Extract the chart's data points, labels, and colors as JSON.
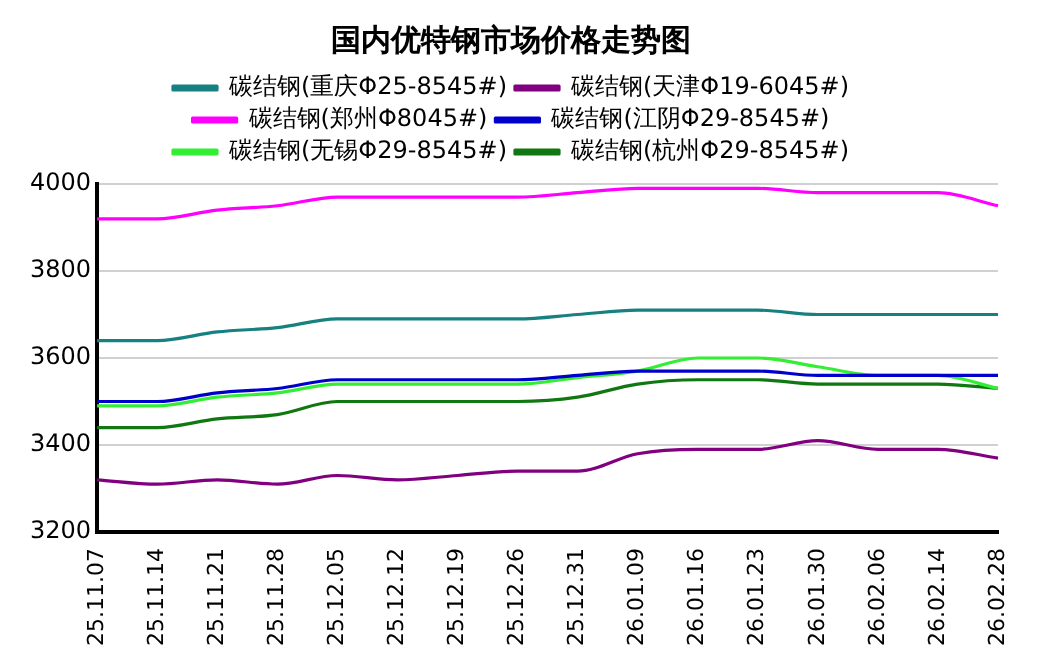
{
  "chart_data": {
    "type": "line",
    "title": "国内优特钢市场价格走势图",
    "categories": [
      "25.11.07",
      "25.11.14",
      "25.11.21",
      "25.11.28",
      "25.12.05",
      "25.12.12",
      "25.12.19",
      "25.12.26",
      "25.12.31",
      "26.01.09",
      "26.01.16",
      "26.01.23",
      "26.01.30",
      "26.02.06",
      "26.02.14",
      "26.02.28"
    ],
    "series": [
      {
        "name": "碳结钢(重庆Φ25-8545#)",
        "color": "#178080",
        "values": [
          3640,
          3640,
          3660,
          3670,
          3690,
          3690,
          3690,
          3690,
          3700,
          3710,
          3710,
          3710,
          3700,
          3700,
          3700,
          3700
        ]
      },
      {
        "name": "碳结钢(天津Φ19-6045#)",
        "color": "#800080",
        "values": [
          3320,
          3310,
          3320,
          3310,
          3330,
          3320,
          3330,
          3340,
          3340,
          3380,
          3390,
          3390,
          3410,
          3390,
          3390,
          3370
        ]
      },
      {
        "name": "碳结钢(郑州Φ8045#)",
        "color": "#ff00ff",
        "values": [
          3920,
          3920,
          3940,
          3950,
          3970,
          3970,
          3970,
          3970,
          3980,
          3990,
          3990,
          3990,
          3980,
          3980,
          3980,
          3950
        ]
      },
      {
        "name": "碳结钢(江阴Φ29-8545#)",
        "color": "#0000cc",
        "values": [
          3500,
          3500,
          3520,
          3530,
          3550,
          3550,
          3550,
          3550,
          3560,
          3570,
          3570,
          3570,
          3560,
          3560,
          3560,
          3560
        ]
      },
      {
        "name": "碳结钢(无锡Φ29-8545#)",
        "color": "#33ee33",
        "values": [
          3490,
          3490,
          3510,
          3520,
          3540,
          3540,
          3540,
          3540,
          3555,
          3570,
          3600,
          3600,
          3580,
          3560,
          3560,
          3530
        ]
      },
      {
        "name": "碳结钢(杭州Φ29-8545#)",
        "color": "#117711",
        "values": [
          3440,
          3440,
          3460,
          3470,
          3500,
          3500,
          3500,
          3500,
          3510,
          3540,
          3550,
          3550,
          3540,
          3540,
          3540,
          3530
        ]
      }
    ],
    "ylim": [
      3200,
      4000
    ],
    "yticks": [
      3200,
      3400,
      3600,
      3800,
      4000
    ],
    "grid": "y",
    "legend": "top",
    "marker": "none",
    "line_style": "solid"
  }
}
